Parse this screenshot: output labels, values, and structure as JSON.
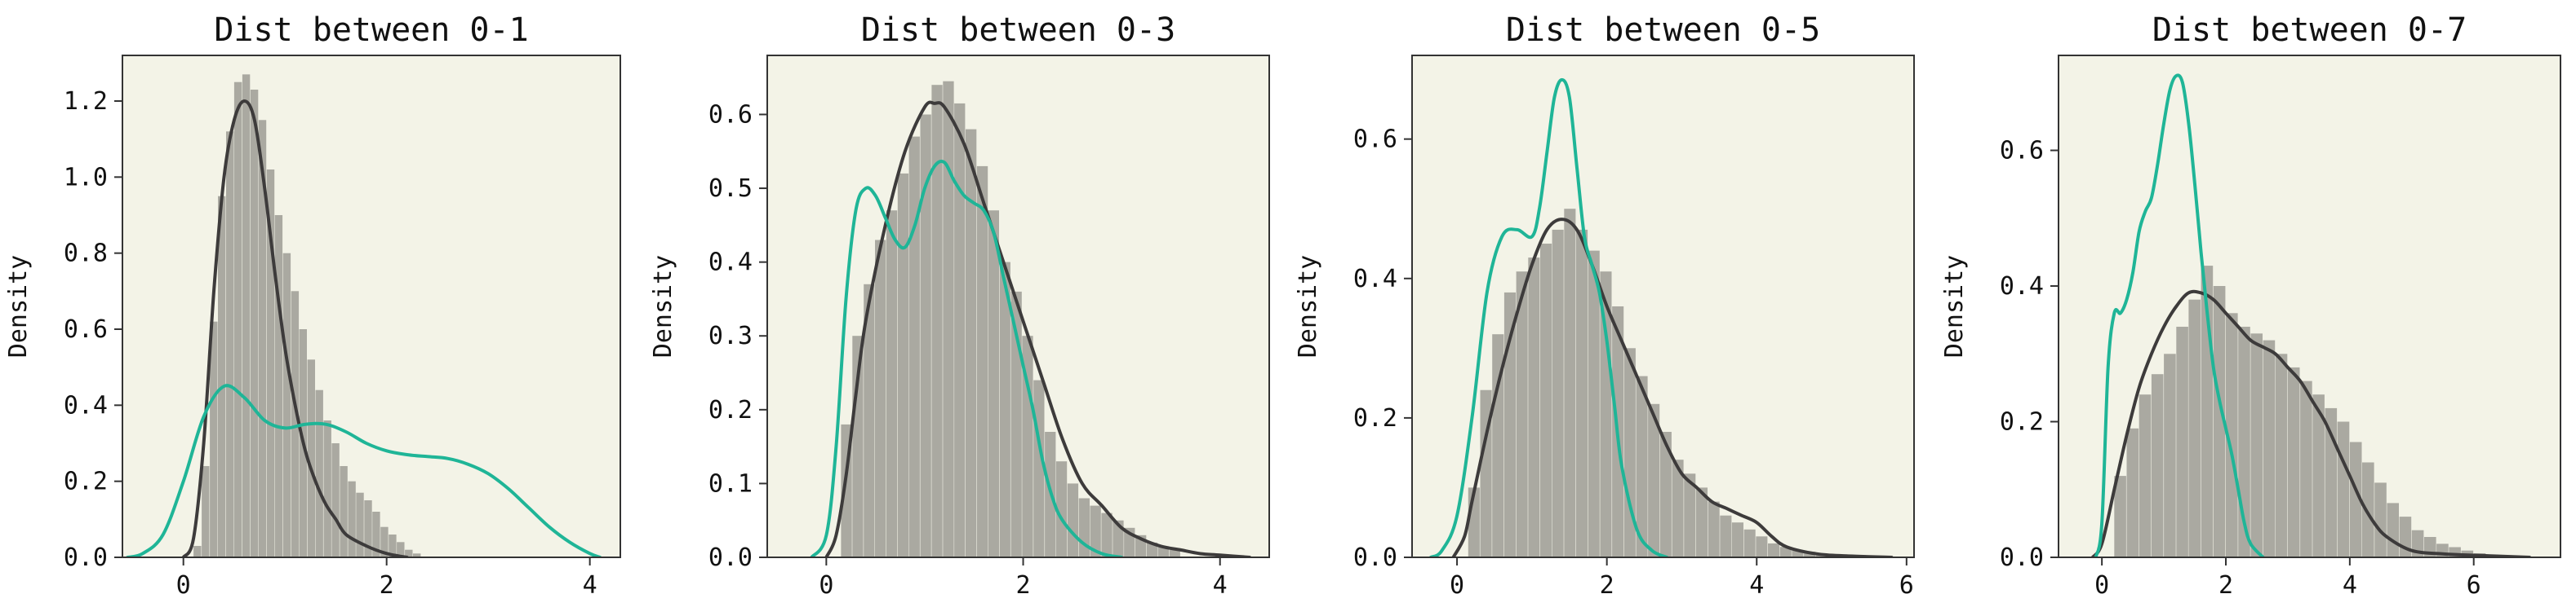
{
  "colors": {
    "plot_bg": "#f3f3e7",
    "hist": "#aaa9a1",
    "kde_dark": "#3d3b3b",
    "kde_teal": "#1fb597",
    "frame": "#333333"
  },
  "chart_data": [
    {
      "type": "histogram",
      "title": "Dist between 0-1",
      "ylabel": "Density",
      "xlim": [
        -0.6,
        4.3
      ],
      "ylim": [
        0,
        1.32
      ],
      "xticks": [
        0,
        2,
        4
      ],
      "yticks": [
        0.0,
        0.2,
        0.4,
        0.6,
        0.8,
        1.0,
        1.2
      ],
      "ytick_labels": [
        "0.0",
        "0.2",
        "0.4",
        "0.6",
        "0.8",
        "1.0",
        "1.2"
      ],
      "bins": {
        "start": 0.1,
        "width": 0.08,
        "heights": [
          0.03,
          0.24,
          0.62,
          0.95,
          1.12,
          1.25,
          1.27,
          1.23,
          1.15,
          1.02,
          0.9,
          0.8,
          0.7,
          0.6,
          0.52,
          0.44,
          0.36,
          0.3,
          0.24,
          0.2,
          0.17,
          0.15,
          0.12,
          0.08,
          0.06,
          0.04,
          0.02,
          0.01
        ]
      },
      "series": [
        {
          "color_key": "kde_dark",
          "x": [
            0.0,
            0.1,
            0.2,
            0.3,
            0.4,
            0.5,
            0.6,
            0.7,
            0.8,
            0.9,
            1.0,
            1.1,
            1.2,
            1.3,
            1.4,
            1.5,
            1.6,
            1.8,
            2.0,
            2.2
          ],
          "y": [
            0.0,
            0.05,
            0.3,
            0.7,
            1.0,
            1.15,
            1.2,
            1.15,
            0.97,
            0.75,
            0.55,
            0.4,
            0.28,
            0.2,
            0.14,
            0.1,
            0.06,
            0.03,
            0.01,
            0.0
          ]
        },
        {
          "color_key": "kde_teal",
          "x": [
            -0.55,
            -0.4,
            -0.2,
            0.0,
            0.2,
            0.4,
            0.6,
            0.8,
            1.0,
            1.2,
            1.4,
            1.6,
            1.8,
            2.0,
            2.2,
            2.4,
            2.6,
            2.8,
            3.0,
            3.2,
            3.4,
            3.6,
            3.8,
            4.0,
            4.1
          ],
          "y": [
            0.0,
            0.01,
            0.06,
            0.2,
            0.37,
            0.45,
            0.42,
            0.36,
            0.34,
            0.35,
            0.35,
            0.33,
            0.3,
            0.28,
            0.27,
            0.265,
            0.26,
            0.245,
            0.22,
            0.18,
            0.13,
            0.08,
            0.04,
            0.01,
            0.0
          ]
        }
      ]
    },
    {
      "type": "histogram",
      "title": "Dist between 0-3",
      "ylabel": "Density",
      "xlim": [
        -0.6,
        4.5
      ],
      "ylim": [
        0,
        0.68
      ],
      "xticks": [
        0,
        2,
        4
      ],
      "yticks": [
        0.0,
        0.1,
        0.2,
        0.3,
        0.4,
        0.5,
        0.6
      ],
      "ytick_labels": [
        "0.0",
        "0.1",
        "0.2",
        "0.3",
        "0.4",
        "0.5",
        "0.6"
      ],
      "bins": {
        "start": 0.15,
        "width": 0.115,
        "heights": [
          0.18,
          0.3,
          0.37,
          0.43,
          0.47,
          0.52,
          0.57,
          0.6,
          0.64,
          0.645,
          0.615,
          0.58,
          0.53,
          0.47,
          0.4,
          0.36,
          0.3,
          0.24,
          0.17,
          0.13,
          0.1,
          0.08,
          0.07,
          0.06,
          0.05,
          0.04,
          0.03,
          0.02,
          0.015,
          0.01
        ]
      },
      "series": [
        {
          "color_key": "kde_dark",
          "x": [
            0.0,
            0.1,
            0.2,
            0.3,
            0.4,
            0.6,
            0.8,
            1.0,
            1.1,
            1.2,
            1.4,
            1.6,
            1.8,
            2.0,
            2.2,
            2.4,
            2.6,
            2.8,
            3.0,
            3.2,
            3.4,
            3.6,
            3.8,
            4.0,
            4.3
          ],
          "y": [
            0.0,
            0.03,
            0.11,
            0.22,
            0.32,
            0.45,
            0.55,
            0.61,
            0.615,
            0.61,
            0.56,
            0.48,
            0.4,
            0.32,
            0.24,
            0.16,
            0.1,
            0.07,
            0.04,
            0.025,
            0.015,
            0.01,
            0.005,
            0.003,
            0.0
          ]
        },
        {
          "color_key": "kde_teal",
          "x": [
            -0.15,
            0.0,
            0.1,
            0.2,
            0.3,
            0.4,
            0.5,
            0.6,
            0.7,
            0.8,
            0.9,
            1.0,
            1.1,
            1.2,
            1.3,
            1.4,
            1.5,
            1.6,
            1.7,
            1.8,
            1.9,
            2.0,
            2.1,
            2.2,
            2.3,
            2.4,
            2.6,
            2.8,
            3.0
          ],
          "y": [
            0.0,
            0.03,
            0.15,
            0.35,
            0.47,
            0.5,
            0.49,
            0.46,
            0.43,
            0.42,
            0.45,
            0.5,
            0.53,
            0.535,
            0.51,
            0.49,
            0.48,
            0.47,
            0.44,
            0.38,
            0.32,
            0.26,
            0.2,
            0.13,
            0.08,
            0.05,
            0.02,
            0.005,
            0.0
          ]
        }
      ]
    },
    {
      "type": "histogram",
      "title": "Dist between 0-5",
      "ylabel": "Density",
      "xlim": [
        -0.6,
        6.1
      ],
      "ylim": [
        0,
        0.72
      ],
      "xticks": [
        0,
        2,
        4,
        6
      ],
      "yticks": [
        0.0,
        0.2,
        0.4,
        0.6
      ],
      "ytick_labels": [
        "0.0",
        "0.2",
        "0.4",
        "0.6"
      ],
      "bins": {
        "start": 0.15,
        "width": 0.16,
        "heights": [
          0.1,
          0.24,
          0.32,
          0.38,
          0.41,
          0.43,
          0.45,
          0.47,
          0.5,
          0.47,
          0.44,
          0.41,
          0.36,
          0.3,
          0.26,
          0.22,
          0.18,
          0.14,
          0.12,
          0.1,
          0.08,
          0.06,
          0.05,
          0.04,
          0.03,
          0.02,
          0.015,
          0.01,
          0.008,
          0.005
        ]
      },
      "series": [
        {
          "color_key": "kde_dark",
          "x": [
            -0.05,
            0.1,
            0.2,
            0.4,
            0.6,
            0.8,
            1.0,
            1.2,
            1.4,
            1.6,
            1.8,
            2.0,
            2.2,
            2.4,
            2.6,
            2.8,
            3.0,
            3.2,
            3.4,
            3.6,
            3.8,
            4.0,
            4.2,
            4.4,
            4.8,
            5.2,
            5.8
          ],
          "y": [
            0.0,
            0.03,
            0.08,
            0.18,
            0.27,
            0.35,
            0.42,
            0.47,
            0.485,
            0.47,
            0.42,
            0.36,
            0.31,
            0.26,
            0.21,
            0.16,
            0.12,
            0.1,
            0.08,
            0.07,
            0.06,
            0.05,
            0.03,
            0.015,
            0.005,
            0.002,
            0.0
          ]
        },
        {
          "color_key": "kde_teal",
          "x": [
            -0.35,
            -0.2,
            0.0,
            0.2,
            0.4,
            0.6,
            0.8,
            1.0,
            1.1,
            1.2,
            1.3,
            1.4,
            1.5,
            1.6,
            1.7,
            1.8,
            1.9,
            2.0,
            2.1,
            2.2,
            2.4,
            2.6,
            2.8
          ],
          "y": [
            0.0,
            0.01,
            0.06,
            0.2,
            0.38,
            0.46,
            0.47,
            0.46,
            0.5,
            0.58,
            0.66,
            0.685,
            0.66,
            0.56,
            0.46,
            0.42,
            0.38,
            0.31,
            0.22,
            0.13,
            0.04,
            0.01,
            0.0
          ]
        }
      ]
    },
    {
      "type": "histogram",
      "title": "Dist between 0-7",
      "ylabel": "Density",
      "xlim": [
        -0.7,
        7.4
      ],
      "ylim": [
        0,
        0.74
      ],
      "xticks": [
        0,
        2,
        4,
        6
      ],
      "yticks": [
        0.0,
        0.2,
        0.4,
        0.6
      ],
      "ytick_labels": [
        "0.0",
        "0.2",
        "0.4",
        "0.6"
      ],
      "bins": {
        "start": 0.2,
        "width": 0.2,
        "heights": [
          0.12,
          0.19,
          0.24,
          0.27,
          0.3,
          0.34,
          0.38,
          0.43,
          0.4,
          0.36,
          0.34,
          0.33,
          0.32,
          0.3,
          0.28,
          0.26,
          0.24,
          0.22,
          0.2,
          0.17,
          0.14,
          0.11,
          0.08,
          0.06,
          0.04,
          0.03,
          0.02,
          0.015,
          0.01,
          0.006,
          0.004,
          0.002
        ]
      },
      "series": [
        {
          "color_key": "kde_dark",
          "x": [
            -0.15,
            0.0,
            0.2,
            0.4,
            0.6,
            0.8,
            1.0,
            1.2,
            1.4,
            1.6,
            1.8,
            2.0,
            2.2,
            2.4,
            2.6,
            2.8,
            3.0,
            3.2,
            3.4,
            3.6,
            3.8,
            4.0,
            4.2,
            4.4,
            4.6,
            5.0,
            5.5,
            6.0,
            6.9
          ],
          "y": [
            0.0,
            0.02,
            0.1,
            0.18,
            0.25,
            0.3,
            0.34,
            0.37,
            0.39,
            0.39,
            0.38,
            0.36,
            0.34,
            0.32,
            0.31,
            0.3,
            0.28,
            0.26,
            0.23,
            0.2,
            0.16,
            0.12,
            0.08,
            0.05,
            0.03,
            0.01,
            0.005,
            0.003,
            0.0
          ]
        },
        {
          "color_key": "kde_teal",
          "x": [
            -0.1,
            0.0,
            0.1,
            0.2,
            0.3,
            0.4,
            0.5,
            0.6,
            0.7,
            0.8,
            0.9,
            1.0,
            1.1,
            1.2,
            1.3,
            1.4,
            1.5,
            1.6,
            1.7,
            1.8,
            1.9,
            2.0,
            2.1,
            2.2,
            2.3,
            2.4,
            2.6
          ],
          "y": [
            0.0,
            0.05,
            0.28,
            0.36,
            0.36,
            0.38,
            0.42,
            0.48,
            0.51,
            0.53,
            0.58,
            0.64,
            0.69,
            0.71,
            0.7,
            0.64,
            0.55,
            0.45,
            0.36,
            0.28,
            0.23,
            0.19,
            0.15,
            0.1,
            0.05,
            0.02,
            0.0
          ]
        }
      ]
    }
  ]
}
